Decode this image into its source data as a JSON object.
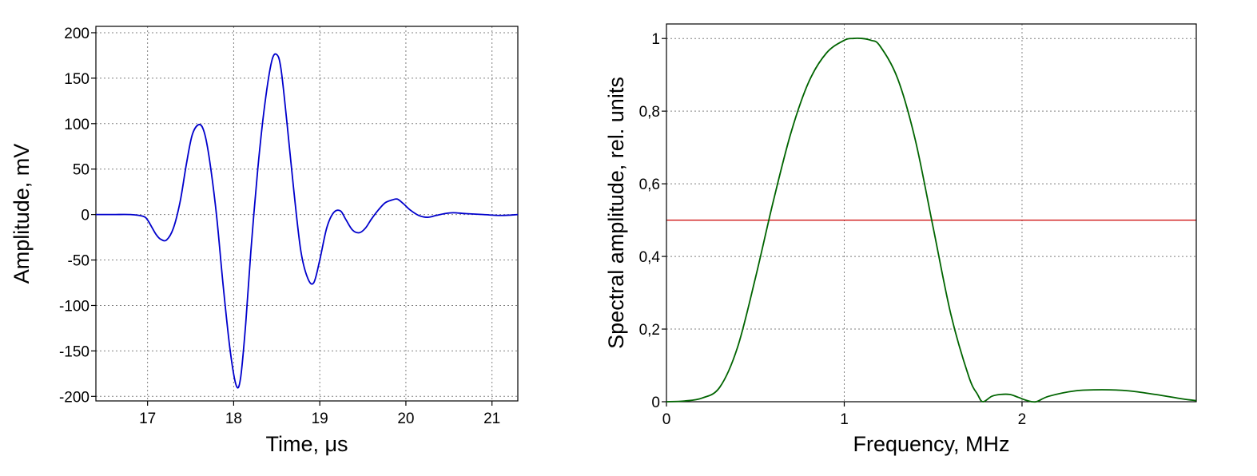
{
  "chart_data": [
    {
      "type": "line",
      "title": "",
      "xlabel": "Time, μs",
      "ylabel": "Amplitude, mV",
      "xlim": [
        16.4,
        21.3
      ],
      "ylim": [
        -205,
        207
      ],
      "xticks": [
        17,
        18,
        19,
        20,
        21
      ],
      "xtick_labels": [
        "17",
        "18",
        "19",
        "20",
        "21"
      ],
      "yticks": [
        200,
        150,
        100,
        50,
        0,
        -50,
        -100,
        -150,
        -200
      ],
      "ytick_labels": [
        "200",
        "150",
        "100",
        "50",
        "0",
        "-50",
        "-100",
        "-150",
        "-200"
      ],
      "grid": true,
      "series": [
        {
          "color": "#0000cc",
          "x": [
            16.4,
            16.6,
            16.8,
            16.95,
            17.0,
            17.05,
            17.1,
            17.15,
            17.22,
            17.3,
            17.38,
            17.45,
            17.52,
            17.6,
            17.66,
            17.72,
            17.8,
            17.88,
            17.96,
            18.03,
            18.08,
            18.14,
            18.2,
            18.28,
            18.36,
            18.44,
            18.5,
            18.55,
            18.62,
            18.7,
            18.78,
            18.86,
            18.93,
            19.0,
            19.08,
            19.16,
            19.24,
            19.3,
            19.38,
            19.46,
            19.53,
            19.6,
            19.68,
            19.76,
            19.84,
            19.9,
            19.97,
            20.05,
            20.15,
            20.25,
            20.35,
            20.45,
            20.55,
            20.7,
            20.9,
            21.1,
            21.3
          ],
          "y": [
            0,
            0,
            0,
            -2,
            -6,
            -14,
            -22,
            -27,
            -28,
            -15,
            15,
            55,
            88,
            99,
            90,
            60,
            0,
            -80,
            -150,
            -188,
            -180,
            -120,
            -40,
            50,
            120,
            168,
            176,
            160,
            100,
            25,
            -40,
            -70,
            -75,
            -50,
            -15,
            2,
            4,
            -5,
            -17,
            -20,
            -15,
            -5,
            5,
            13,
            16,
            17,
            12,
            5,
            -1,
            -3,
            -1,
            1,
            2,
            1,
            0,
            -1,
            0
          ]
        }
      ]
    },
    {
      "type": "line",
      "title": "",
      "xlabel": "Frequency, MHz",
      "ylabel": "Spectral amplitude, rel. units",
      "xlim": [
        0,
        2.98
      ],
      "ylim": [
        0,
        1.04
      ],
      "xticks": [
        0,
        1,
        2
      ],
      "xtick_labels": [
        "0",
        "1",
        "2"
      ],
      "yticks": [
        0,
        0.2,
        0.4,
        0.6,
        0.8,
        1.0
      ],
      "ytick_labels": [
        "0",
        "0,2",
        "0,4",
        "0,6",
        "0,8",
        "1"
      ],
      "grid": true,
      "reference_line": {
        "y": 0.5,
        "color": "#cc0000"
      },
      "series": [
        {
          "color": "#006400",
          "x": [
            0,
            0.1,
            0.2,
            0.3,
            0.4,
            0.5,
            0.6,
            0.7,
            0.8,
            0.9,
            1.0,
            1.05,
            1.1,
            1.15,
            1.2,
            1.3,
            1.4,
            1.5,
            1.6,
            1.7,
            1.75,
            1.78,
            1.83,
            1.88,
            1.93,
            1.98,
            2.03,
            2.08,
            2.15,
            2.3,
            2.45,
            2.6,
            2.75,
            2.9,
            2.98
          ],
          "y": [
            0,
            0.002,
            0.01,
            0.04,
            0.15,
            0.34,
            0.55,
            0.74,
            0.88,
            0.96,
            0.995,
            1.0,
            1.0,
            0.995,
            0.98,
            0.89,
            0.72,
            0.48,
            0.24,
            0.07,
            0.02,
            0.0,
            0.015,
            0.02,
            0.02,
            0.012,
            0.003,
            0.0,
            0.015,
            0.03,
            0.033,
            0.03,
            0.02,
            0.008,
            0.003
          ]
        }
      ]
    }
  ]
}
